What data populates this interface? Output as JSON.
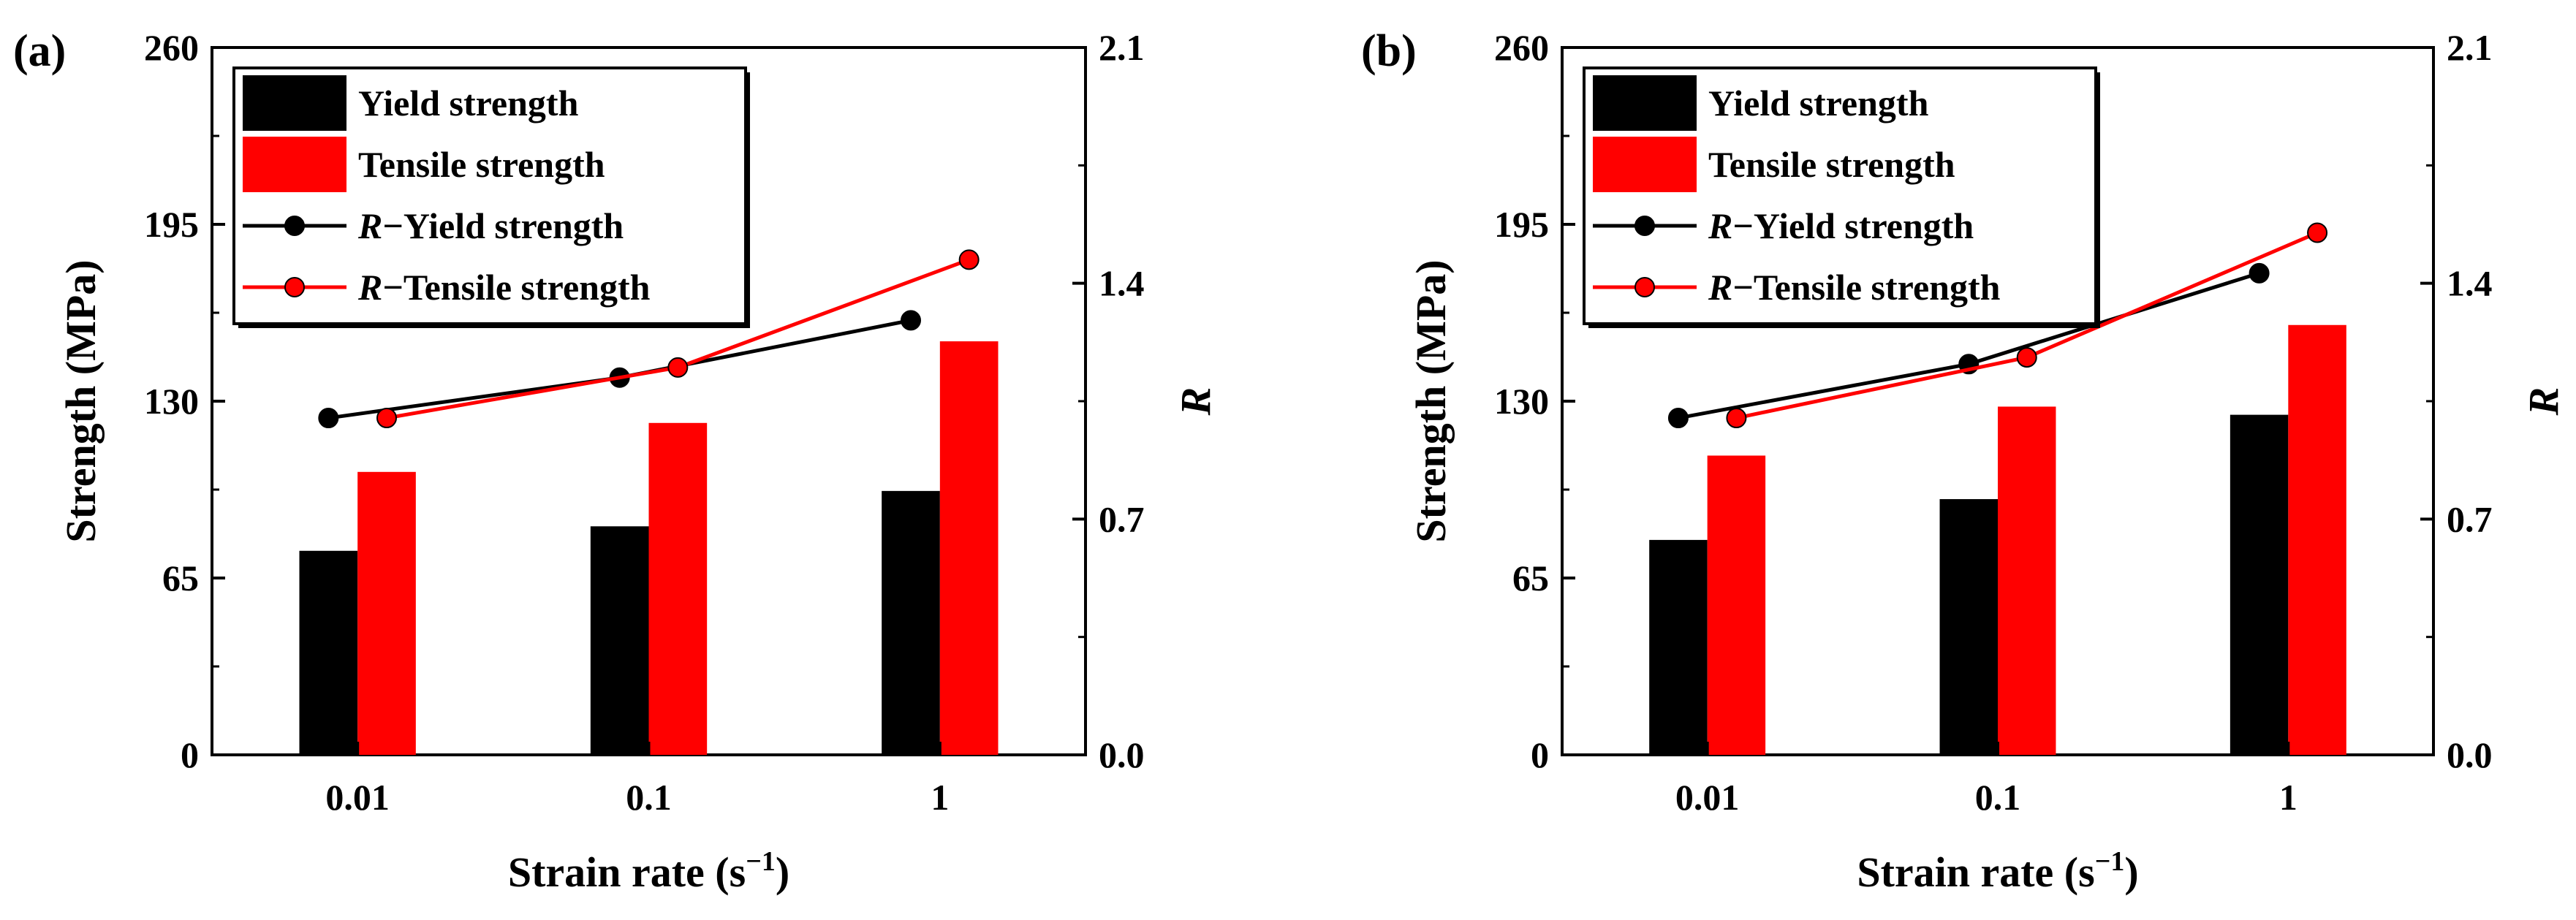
{
  "colors": {
    "yield": "#000000",
    "tensile": "#ff0000",
    "axis": "#000000",
    "background": "#ffffff"
  },
  "chart_data": [
    {
      "panel_label": "(a)",
      "type": "bar+line",
      "categories": [
        "0.01",
        "0.1",
        "1"
      ],
      "xlabel": "Strain rate (s⁻¹)",
      "xlabel_main": "Strain rate (s",
      "xlabel_exp": "−1",
      "xlabel_end": ")",
      "ylabel": "Strength (MPa)",
      "y2label": "R",
      "ylim": [
        0,
        260
      ],
      "yticks": [
        "0",
        "65",
        "130",
        "195",
        "260"
      ],
      "y2lim": [
        0,
        2.1
      ],
      "y2ticks": [
        "0.0",
        "0.7",
        "1.4",
        "2.1"
      ],
      "series": [
        {
          "name": "Yield strength",
          "kind": "bar",
          "axis": "left",
          "color": "#000000",
          "values": [
            75,
            84,
            97
          ]
        },
        {
          "name": "Tensile strength",
          "kind": "bar",
          "axis": "left",
          "color": "#ff0000",
          "values": [
            104,
            122,
            152
          ]
        },
        {
          "name": "R−Yield strength",
          "kind": "line",
          "axis": "right",
          "color": "#000000",
          "values": [
            1.0,
            1.12,
            1.29
          ]
        },
        {
          "name": "R−Tensile strength",
          "kind": "line",
          "axis": "right",
          "color": "#ff0000",
          "values": [
            1.0,
            1.15,
            1.47
          ]
        }
      ],
      "legend": {
        "position": "top-left",
        "entries": [
          {
            "prefix": "",
            "label": "Yield strength",
            "kind": "bar",
            "color": "#000000"
          },
          {
            "prefix": "",
            "label": "Tensile strength",
            "kind": "bar",
            "color": "#ff0000"
          },
          {
            "prefix": "R",
            "label": "−Yield strength",
            "kind": "line",
            "color": "#000000"
          },
          {
            "prefix": "R",
            "label": "−Tensile strength",
            "kind": "line",
            "color": "#ff0000"
          }
        ]
      }
    },
    {
      "panel_label": "(b)",
      "type": "bar+line",
      "categories": [
        "0.01",
        "0.1",
        "1"
      ],
      "xlabel": "Strain rate (s⁻¹)",
      "xlabel_main": "Strain rate (s",
      "xlabel_exp": "−1",
      "xlabel_end": ")",
      "ylabel": "Strength (MPa)",
      "y2label": "R",
      "ylim": [
        0,
        260
      ],
      "yticks": [
        "0",
        "65",
        "130",
        "195",
        "260"
      ],
      "y2lim": [
        0,
        2.1
      ],
      "y2ticks": [
        "0.0",
        "0.7",
        "1.4",
        "2.1"
      ],
      "series": [
        {
          "name": "Yield strength",
          "kind": "bar",
          "axis": "left",
          "color": "#000000",
          "values": [
            79,
            94,
            125
          ]
        },
        {
          "name": "Tensile strength",
          "kind": "bar",
          "axis": "left",
          "color": "#ff0000",
          "values": [
            110,
            128,
            158
          ]
        },
        {
          "name": "R−Yield strength",
          "kind": "line",
          "axis": "right",
          "color": "#000000",
          "values": [
            1.0,
            1.16,
            1.43
          ]
        },
        {
          "name": "R−Tensile strength",
          "kind": "line",
          "axis": "right",
          "color": "#ff0000",
          "values": [
            1.0,
            1.18,
            1.55
          ]
        }
      ],
      "legend": {
        "position": "top-left",
        "entries": [
          {
            "prefix": "",
            "label": "Yield strength",
            "kind": "bar",
            "color": "#000000"
          },
          {
            "prefix": "",
            "label": "Tensile strength",
            "kind": "bar",
            "color": "#ff0000"
          },
          {
            "prefix": "R",
            "label": "−Yield strength",
            "kind": "line",
            "color": "#000000"
          },
          {
            "prefix": "R",
            "label": "−Tensile strength",
            "kind": "line",
            "color": "#ff0000"
          }
        ]
      }
    }
  ]
}
